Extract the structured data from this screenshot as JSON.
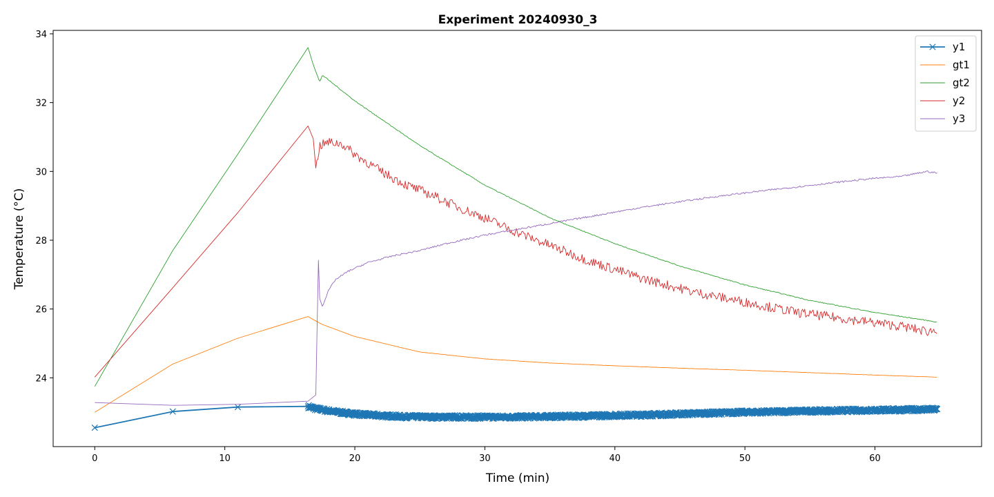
{
  "chart_data": {
    "type": "line",
    "title": "Experiment 20240930_3",
    "xlabel": "Time (min)",
    "ylabel": "Temperature (°C)",
    "xlim": [
      -3.2,
      68.2
    ],
    "ylim": [
      22.0,
      34.1
    ],
    "xticks": [
      0,
      10,
      20,
      30,
      40,
      50,
      60
    ],
    "yticks": [
      24,
      26,
      28,
      30,
      32,
      34
    ],
    "grid": false,
    "legend": "top-right",
    "series": [
      {
        "name": "y1",
        "color": "#1f77b4",
        "marker": "x",
        "x": [
          0.0,
          6.0,
          11.0,
          16.4,
          17.0,
          18.0,
          19.0,
          20.0,
          22.0,
          24.0,
          26.0,
          28.0,
          30.0,
          32.0,
          34.0,
          36.0,
          38.0,
          40.0,
          42.0,
          44.0,
          46.0,
          48.0,
          50.0,
          52.0,
          54.0,
          56.0,
          58.0,
          60.0,
          62.0,
          64.0,
          64.8
        ],
        "y": [
          22.55,
          23.02,
          23.15,
          23.17,
          23.1,
          23.04,
          22.99,
          22.95,
          22.9,
          22.87,
          22.86,
          22.86,
          22.86,
          22.86,
          22.87,
          22.88,
          22.89,
          22.91,
          22.92,
          22.94,
          22.96,
          22.98,
          23.0,
          23.01,
          23.03,
          23.04,
          23.05,
          23.06,
          23.07,
          23.08,
          23.08
        ]
      },
      {
        "name": "gt1",
        "color": "#ff7f0e",
        "x": [
          0.0,
          6.0,
          11.0,
          16.4,
          17.5,
          20.0,
          25.0,
          30.0,
          35.0,
          40.0,
          45.0,
          50.0,
          55.0,
          60.0,
          64.8
        ],
        "y": [
          23.0,
          24.4,
          25.15,
          25.78,
          25.55,
          25.2,
          24.75,
          24.55,
          24.43,
          24.35,
          24.28,
          24.22,
          24.15,
          24.08,
          24.02
        ]
      },
      {
        "name": "gt2",
        "color": "#2ca02c",
        "x": [
          0.0,
          6.0,
          11.0,
          16.4,
          16.8,
          17.3,
          17.5,
          20.0,
          25.0,
          30.0,
          35.0,
          40.0,
          45.0,
          50.0,
          55.0,
          60.0,
          64.8
        ],
        "y": [
          23.75,
          27.7,
          30.5,
          33.6,
          33.1,
          32.6,
          32.8,
          32.05,
          30.75,
          29.6,
          28.65,
          27.9,
          27.25,
          26.7,
          26.25,
          25.9,
          25.62
        ]
      },
      {
        "name": "y2",
        "color": "#d62728",
        "x": [
          0.0,
          5.5,
          11.0,
          16.4,
          16.8,
          17.0,
          17.3,
          18.0,
          19.0,
          20.0,
          22.0,
          24.0,
          26.0,
          28.0,
          30.0,
          32.0,
          34.0,
          36.0,
          38.0,
          40.0,
          42.0,
          44.0,
          46.0,
          48.0,
          50.0,
          52.0,
          54.0,
          56.0,
          58.0,
          60.0,
          62.0,
          64.0,
          64.8
        ],
        "y": [
          24.02,
          26.4,
          28.8,
          31.32,
          30.95,
          30.1,
          30.75,
          30.85,
          30.8,
          30.5,
          30.0,
          29.6,
          29.3,
          28.95,
          28.65,
          28.3,
          28.0,
          27.7,
          27.4,
          27.15,
          26.9,
          26.7,
          26.5,
          26.35,
          26.2,
          26.05,
          25.9,
          25.8,
          25.7,
          25.6,
          25.5,
          25.35,
          25.38
        ]
      },
      {
        "name": "y3",
        "color": "#9467bd",
        "x": [
          0.0,
          6.0,
          11.0,
          16.4,
          17.0,
          17.2,
          17.3,
          17.5,
          18.0,
          18.5,
          19.5,
          21.0,
          23.0,
          25.0,
          27.0,
          30.0,
          33.0,
          36.0,
          39.0,
          42.0,
          45.0,
          48.0,
          51.0,
          54.0,
          57.0,
          60.0,
          62.0,
          64.0,
          64.8
        ],
        "y": [
          23.28,
          23.2,
          23.23,
          23.32,
          23.5,
          27.42,
          26.3,
          26.08,
          26.55,
          26.85,
          27.1,
          27.35,
          27.55,
          27.7,
          27.9,
          28.15,
          28.35,
          28.55,
          28.75,
          28.95,
          29.12,
          29.28,
          29.42,
          29.55,
          29.68,
          29.8,
          29.85,
          30.0,
          29.95
        ]
      }
    ]
  }
}
